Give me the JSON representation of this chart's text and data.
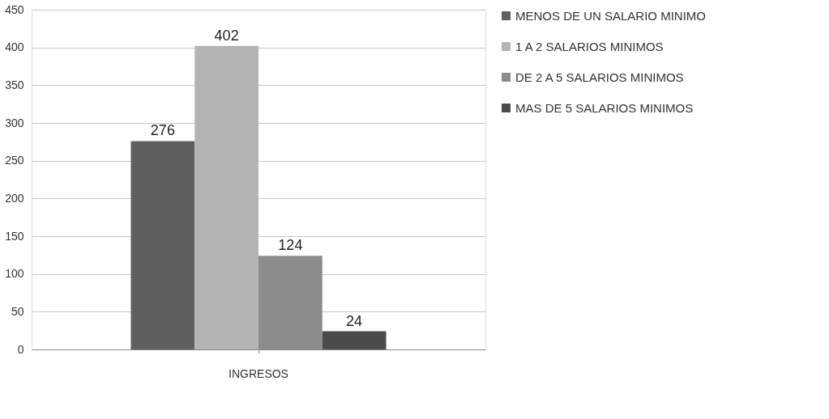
{
  "chart_data": {
    "type": "bar",
    "categories": [
      "INGRESOS"
    ],
    "series": [
      {
        "name": "MENOS DE UN SALARIO MINIMO",
        "color": "#5f5f5f",
        "values": [
          276
        ]
      },
      {
        "name": "1 A 2 SALARIOS MINIMOS",
        "color": "#b4b4b4",
        "values": [
          402
        ]
      },
      {
        "name": "DE 2 A 5 SALARIOS MINIMOS",
        "color": "#8c8c8c",
        "values": [
          124
        ]
      },
      {
        "name": "MAS DE 5 SALARIOS MINIMOS",
        "color": "#4b4b4b",
        "values": [
          24
        ]
      }
    ],
    "ylim": [
      0,
      450
    ],
    "yticks": [
      0,
      50,
      100,
      150,
      200,
      250,
      300,
      350,
      400,
      450
    ],
    "grid": "y",
    "legend": "right",
    "data_labels": true
  }
}
